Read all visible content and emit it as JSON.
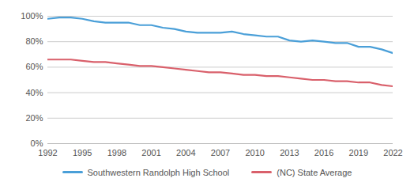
{
  "chart_data": {
    "type": "line",
    "x": [
      1992,
      1993,
      1994,
      1995,
      1996,
      1997,
      1998,
      1999,
      2000,
      2001,
      2002,
      2003,
      2004,
      2005,
      2006,
      2007,
      2008,
      2009,
      2010,
      2011,
      2012,
      2013,
      2014,
      2015,
      2016,
      2017,
      2018,
      2019,
      2020,
      2021,
      2022
    ],
    "series": [
      {
        "name": "Southwestern Randolph High School",
        "color": "#4a9fd8",
        "values": [
          98,
          99,
          99,
          98,
          96,
          95,
          95,
          95,
          93,
          93,
          91,
          90,
          88,
          87,
          87,
          87,
          88,
          86,
          85,
          84,
          84,
          81,
          80,
          81,
          80,
          79,
          79,
          76,
          76,
          74,
          71
        ]
      },
      {
        "name": "(NC) State Average",
        "color": "#d9606b",
        "values": [
          66,
          66,
          66,
          65,
          64,
          64,
          63,
          62,
          61,
          61,
          60,
          59,
          58,
          57,
          56,
          56,
          55,
          54,
          54,
          53,
          53,
          52,
          51,
          50,
          50,
          49,
          49,
          48,
          48,
          46,
          45
        ]
      }
    ],
    "xlim": [
      1992,
      2022
    ],
    "xticks": [
      1992,
      1995,
      1998,
      2001,
      2004,
      2007,
      2010,
      2013,
      2016,
      2019,
      2022
    ],
    "ylim": [
      0,
      100
    ],
    "yticks": [
      {
        "value": 0,
        "label": "0%"
      },
      {
        "value": 20,
        "label": "20%"
      },
      {
        "value": 40,
        "label": "40%"
      },
      {
        "value": 60,
        "label": "60%"
      },
      {
        "value": 80,
        "label": "80%"
      },
      {
        "value": 100,
        "label": "100%"
      }
    ],
    "grid": true,
    "legend": "bottom"
  }
}
